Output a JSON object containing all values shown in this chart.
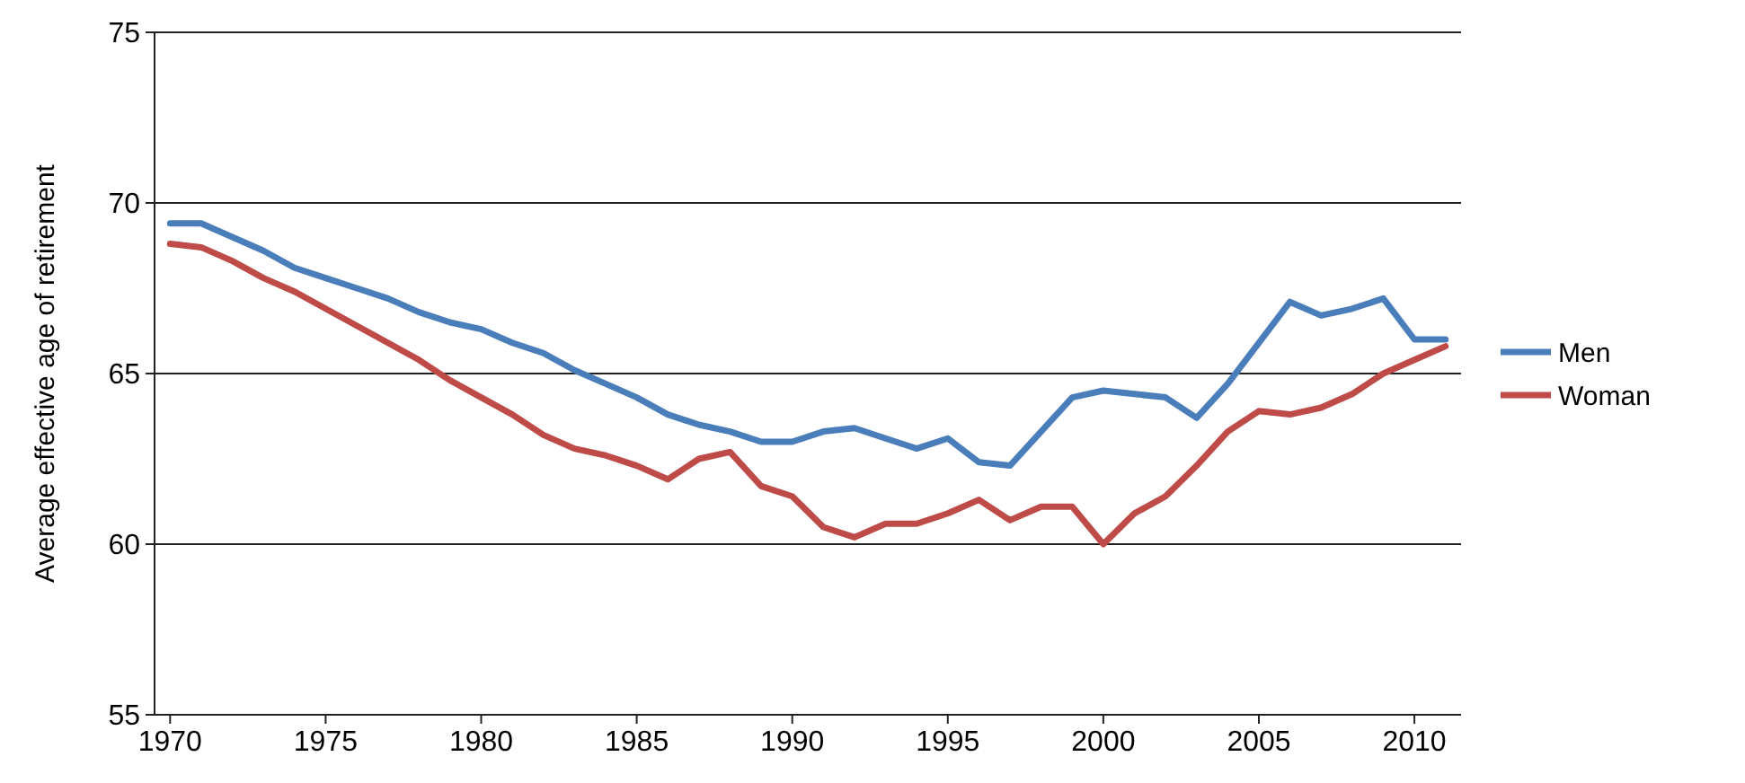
{
  "chart_data": {
    "type": "line",
    "ylabel": "Average effective age of retirement",
    "x": [
      1970,
      1971,
      1972,
      1973,
      1974,
      1975,
      1976,
      1977,
      1978,
      1979,
      1980,
      1981,
      1982,
      1983,
      1984,
      1985,
      1986,
      1987,
      1988,
      1989,
      1990,
      1991,
      1992,
      1993,
      1994,
      1995,
      1996,
      1997,
      1998,
      1999,
      2000,
      2001,
      2002,
      2003,
      2004,
      2005,
      2006,
      2007,
      2008,
      2009,
      2010,
      2011
    ],
    "series": [
      {
        "name": "Men",
        "color": "#4a7ebb",
        "values": [
          69.4,
          69.4,
          69.0,
          68.6,
          68.1,
          67.8,
          67.5,
          67.2,
          66.8,
          66.5,
          66.3,
          65.9,
          65.6,
          65.1,
          64.7,
          64.3,
          63.8,
          63.5,
          63.3,
          63.0,
          63.0,
          63.3,
          63.4,
          63.1,
          62.8,
          63.1,
          62.4,
          62.3,
          63.3,
          64.3,
          64.5,
          64.4,
          64.3,
          63.7,
          64.7,
          65.9,
          67.1,
          66.7,
          66.9,
          67.2,
          66.0,
          66.0
        ]
      },
      {
        "name": "Woman",
        "color": "#be4b48",
        "values": [
          68.8,
          68.7,
          68.3,
          67.8,
          67.4,
          66.9,
          66.4,
          65.9,
          65.4,
          64.8,
          64.3,
          63.8,
          63.2,
          62.8,
          62.6,
          62.3,
          61.9,
          62.5,
          62.7,
          61.7,
          61.4,
          60.5,
          60.2,
          60.6,
          60.6,
          60.9,
          61.3,
          60.7,
          61.1,
          61.1,
          60.0,
          60.9,
          61.4,
          62.3,
          63.3,
          63.9,
          63.8,
          64.0,
          64.4,
          65.0,
          65.4,
          65.8
        ]
      }
    ],
    "xlim": [
      1969.5,
      2011.5
    ],
    "xticks": [
      1970,
      1975,
      1980,
      1985,
      1990,
      1995,
      2000,
      2005,
      2010
    ],
    "ylim": [
      55,
      75
    ],
    "yticks": [
      55,
      60,
      65,
      70,
      75
    ],
    "grid": "y",
    "legend": "right",
    "marker": "none",
    "line_style": "solid"
  }
}
